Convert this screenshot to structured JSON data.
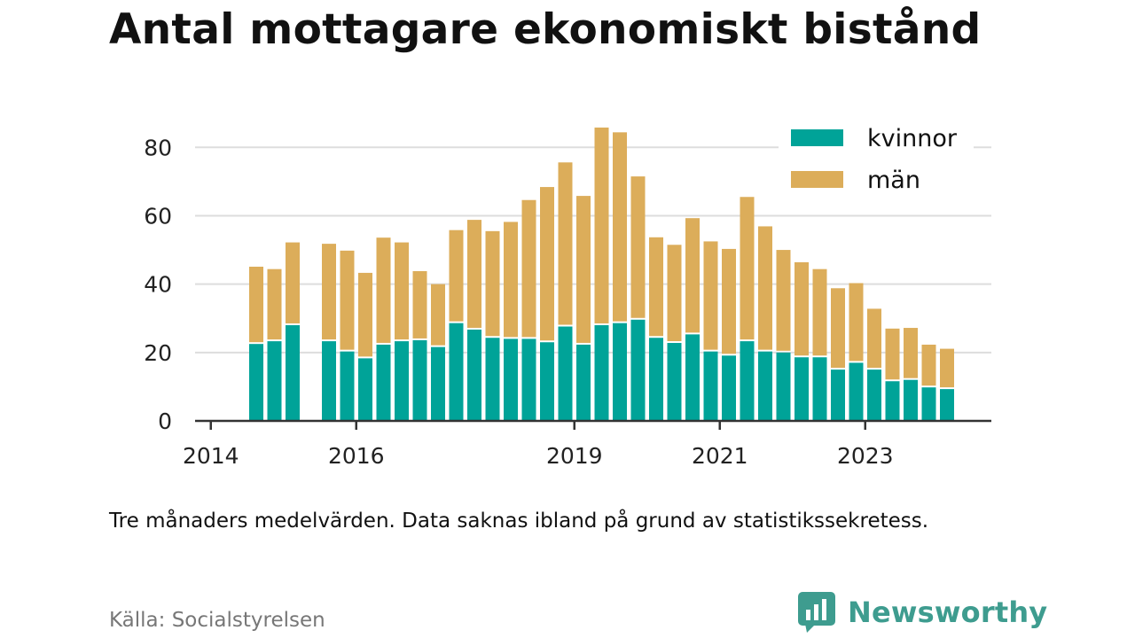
{
  "title": "Antal mottagare ekonomiskt bistånd",
  "note": "Tre månaders medelvärden. Data saknas ibland på grund av statistikssekretess.",
  "source": "Källa: Socialstyrelsen",
  "brand": {
    "name": "Newsworthy",
    "logo_icon": "chart-bubble-icon",
    "color": "#3e9c8f"
  },
  "chart_data": {
    "type": "bar",
    "stacked": true,
    "title": "",
    "xlabel": "",
    "ylabel": "",
    "ylim": [
      0,
      92
    ],
    "yticks": [
      0,
      20,
      40,
      60,
      80
    ],
    "xtick_labels": [
      "2014",
      "2016",
      "2019",
      "2021",
      "2023"
    ],
    "grid": true,
    "legend_position": "top-right",
    "colors": {
      "kvinnor": "#00a398",
      "män": "#dcad5a"
    },
    "categories": [
      "2014-Q3",
      "2014-Q4",
      "2015-Q1",
      "2015-Q2",
      "2015-Q3",
      "2015-Q4",
      "2016-Q1",
      "2016-Q2",
      "2016-Q3",
      "2016-Q4",
      "2017-Q1",
      "2017-Q2",
      "2017-Q3",
      "2017-Q4",
      "2018-Q1",
      "2018-Q2",
      "2018-Q3",
      "2018-Q4",
      "2019-Q1",
      "2019-Q2",
      "2019-Q3",
      "2019-Q4",
      "2020-Q1",
      "2020-Q2",
      "2020-Q3",
      "2020-Q4",
      "2021-Q1",
      "2021-Q2",
      "2021-Q3",
      "2021-Q4",
      "2022-Q1",
      "2022-Q2",
      "2022-Q3",
      "2022-Q4",
      "2023-Q1",
      "2023-Q2",
      "2023-Q3",
      "2023-Q4",
      "2024-Q1",
      "2024-Q2"
    ],
    "series": [
      {
        "name": "kvinnor",
        "values": [
          22.5,
          23.3,
          28.0,
          null,
          23.3,
          20.3,
          18.3,
          22.3,
          23.3,
          23.6,
          21.6,
          28.6,
          26.7,
          24.3,
          24.0,
          24.0,
          23.0,
          27.6,
          22.3,
          28.0,
          28.6,
          29.6,
          24.3,
          22.8,
          25.3,
          20.3,
          19.1,
          23.3,
          20.3,
          20.0,
          18.6,
          18.6,
          15.0,
          17.0,
          15.0,
          11.6,
          12.0,
          9.8,
          9.3,
          null
        ]
      },
      {
        "name": "män",
        "values": [
          22.6,
          21.1,
          24.2,
          null,
          28.5,
          29.5,
          25.0,
          31.3,
          28.9,
          20.2,
          18.4,
          27.2,
          32.1,
          31.2,
          34.2,
          40.6,
          45.4,
          48.0,
          43.5,
          57.8,
          55.8,
          41.9,
          29.4,
          28.7,
          34.0,
          32.2,
          31.2,
          42.2,
          36.6,
          30.0,
          27.8,
          25.8,
          23.8,
          23.3,
          17.8,
          15.4,
          15.2,
          12.5,
          11.8,
          null
        ]
      }
    ]
  }
}
